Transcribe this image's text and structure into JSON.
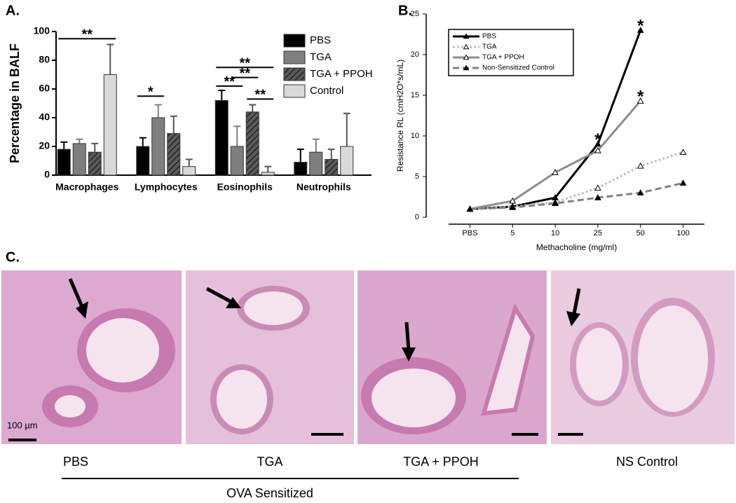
{
  "chart_data": [
    {
      "type": "bar",
      "label": "A.",
      "y_label": "Percentage in BALF",
      "categories": [
        "Macrophages",
        "Lymphocytes",
        "Eosinophils",
        "Neutrophils"
      ],
      "series": [
        {
          "name": "PBS",
          "color": "#000000",
          "values": [
            18,
            20,
            52,
            9
          ],
          "errors": [
            5,
            6,
            7,
            9
          ]
        },
        {
          "name": "TGA",
          "color": "#7f7f7f",
          "values": [
            22,
            40,
            20,
            16
          ],
          "errors": [
            3,
            9,
            14,
            9
          ]
        },
        {
          "name": "TGA + PPOH",
          "color": "#555555",
          "hatch": true,
          "values": [
            16,
            29,
            44,
            11
          ],
          "errors": [
            6,
            12,
            5,
            7
          ]
        },
        {
          "name": "Control",
          "color": "#d9d9d9",
          "values": [
            70,
            6,
            2,
            20
          ],
          "errors": [
            21,
            5,
            4,
            23
          ]
        }
      ],
      "ylim": [
        0,
        100
      ],
      "yticks": [
        0,
        20,
        40,
        60,
        80,
        100
      ],
      "annotations": [
        "**",
        "*",
        "**",
        "**",
        "**",
        "**"
      ]
    },
    {
      "type": "line",
      "label": "B.",
      "y_label": "Resistance RL (cmH2O*s/mL)",
      "x_label": "Methacholine (mg/ml)",
      "categories": [
        "PBS",
        "5",
        "10",
        "25",
        "50",
        "100"
      ],
      "series": [
        {
          "name": "PBS",
          "color": "#000000",
          "dash": "solid",
          "marker_fill": true,
          "values": [
            1,
            1.3,
            2.4,
            9,
            23,
            null
          ]
        },
        {
          "name": "TGA",
          "color": "#c0c0c0",
          "dash": "dotted",
          "marker_fill": false,
          "values": [
            1,
            1.3,
            1.8,
            3.6,
            6.3,
            8
          ]
        },
        {
          "name": "TGA + PPOH",
          "color": "#8c8c8c",
          "dash": "solid",
          "marker_fill": false,
          "values": [
            1,
            2,
            5.5,
            8.2,
            14.3,
            null
          ]
        },
        {
          "name": "Non-Sensitized Control",
          "color": "#808080",
          "dash": "dashed",
          "marker_fill": true,
          "values": [
            1,
            1.2,
            1.7,
            2.4,
            3,
            4.2
          ]
        }
      ],
      "ylim": [
        0,
        25
      ],
      "yticks": [
        0,
        5,
        10,
        15,
        20,
        25
      ],
      "annotations": [
        "*",
        "*",
        "*"
      ]
    }
  ],
  "histology": {
    "label": "C.",
    "scale": "100 µm",
    "captions": [
      "PBS",
      "TGA",
      "TGA + PPOH",
      "NS Control"
    ],
    "group": "OVA Sensitized"
  }
}
